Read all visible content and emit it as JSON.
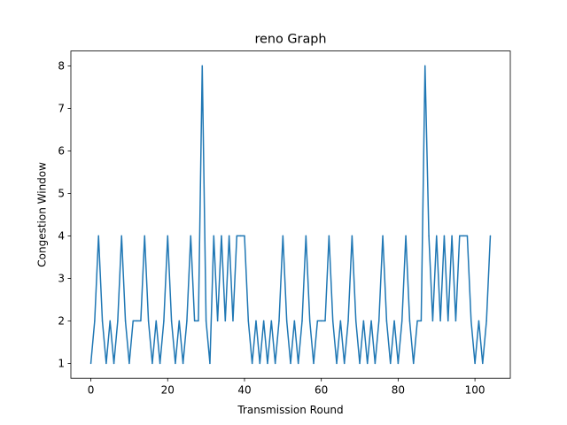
{
  "chart_data": {
    "type": "line",
    "title": "reno Graph",
    "xlabel": "Transmission Round",
    "ylabel": "Congestion Window",
    "xlim": [
      -5.2,
      109.2
    ],
    "ylim": [
      0.65,
      8.35
    ],
    "xticks": [
      0,
      20,
      40,
      60,
      80,
      100
    ],
    "yticks": [
      1,
      2,
      3,
      4,
      5,
      6,
      7,
      8
    ],
    "grid": false,
    "legend": "none",
    "series": [
      {
        "color": "#1f77b4",
        "x": [
          0,
          1,
          2,
          3,
          4,
          5,
          6,
          7,
          8,
          9,
          10,
          11,
          12,
          13,
          14,
          15,
          16,
          17,
          18,
          19,
          20,
          21,
          22,
          23,
          24,
          25,
          26,
          27,
          28,
          29,
          30,
          31,
          32,
          33,
          34,
          35,
          36,
          37,
          38,
          39,
          40,
          41,
          42,
          43,
          44,
          45,
          46,
          47,
          48,
          49,
          50,
          51,
          52,
          53,
          54,
          55,
          56,
          57,
          58,
          59,
          60,
          61,
          62,
          63,
          64,
          65,
          66,
          67,
          68,
          69,
          70,
          71,
          72,
          73,
          74,
          75,
          76,
          77,
          78,
          79,
          80,
          81,
          82,
          83,
          84,
          85,
          86,
          87,
          88,
          89,
          90,
          91,
          92,
          93,
          94,
          95,
          96,
          97,
          98,
          99,
          100,
          101,
          102,
          103,
          104
        ],
        "y": [
          1,
          2,
          4,
          2,
          1,
          2,
          1,
          2,
          4,
          2,
          1,
          2,
          2,
          2,
          4,
          2,
          1,
          2,
          1,
          2,
          4,
          2,
          1,
          2,
          1,
          2,
          4,
          2,
          2,
          8,
          2,
          1,
          4,
          2,
          4,
          2,
          4,
          2,
          4,
          4,
          4,
          2,
          1,
          2,
          1,
          2,
          1,
          2,
          1,
          2,
          4,
          2,
          1,
          2,
          1,
          2,
          4,
          2,
          1,
          2,
          2,
          2,
          4,
          2,
          1,
          2,
          1,
          2,
          4,
          2,
          1,
          2,
          1,
          2,
          1,
          2,
          4,
          2,
          1,
          2,
          1,
          2,
          4,
          2,
          1,
          2,
          2,
          8,
          4,
          2,
          4,
          2,
          4,
          2,
          4,
          2,
          4,
          4,
          4,
          2,
          1,
          2,
          1,
          2,
          4
        ]
      }
    ]
  }
}
